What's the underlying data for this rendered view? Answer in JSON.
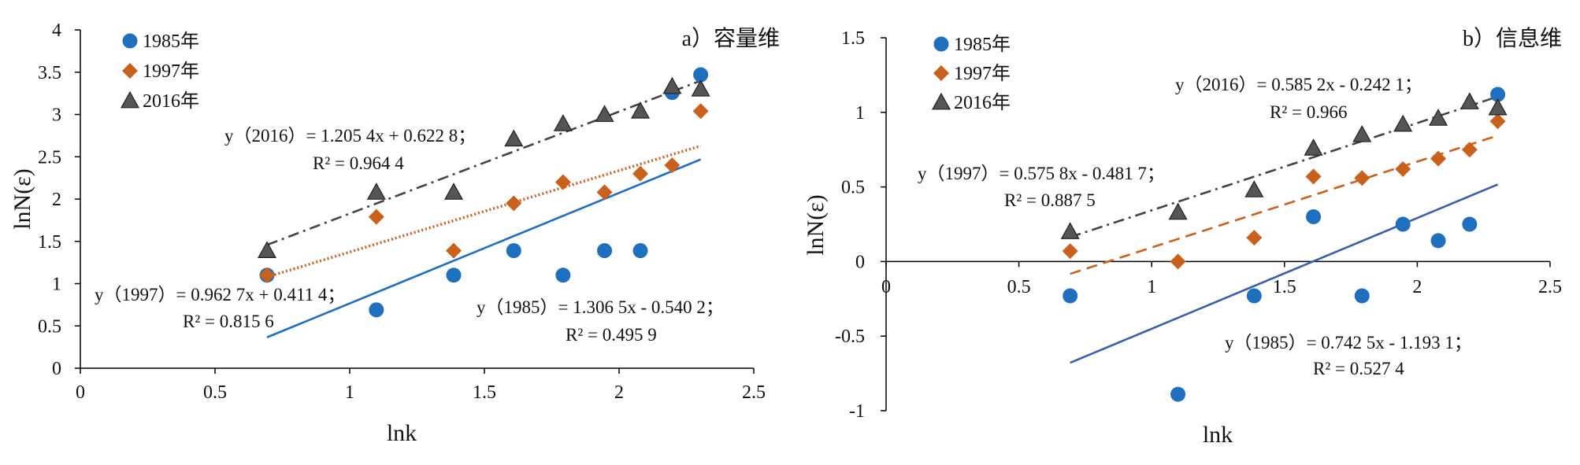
{
  "chart_data": [
    {
      "type": "scatter",
      "panel_title": "a）容量维",
      "xlabel": "lnk",
      "ylabel": "lnN(ε)",
      "xlim": [
        0,
        2.5
      ],
      "ylim": [
        0,
        4
      ],
      "x_ticks": [
        0,
        0.5,
        1,
        1.5,
        2,
        2.5
      ],
      "x_tick_labels": [
        "0",
        "0.5",
        "1",
        "1.5",
        "2",
        "2.5"
      ],
      "y_ticks": [
        0,
        0.5,
        1,
        1.5,
        2,
        2.5,
        3,
        3.5,
        4
      ],
      "y_tick_labels": [
        "0",
        "0.5",
        "1",
        "1.5",
        "2",
        "2.5",
        "3",
        "3.5",
        "4"
      ],
      "grid": false,
      "legend_position": "top-left",
      "series": [
        {
          "name": "1985年",
          "marker": "circle",
          "color": "#1f6fbf",
          "x": [
            0.693,
            1.099,
            1.386,
            1.609,
            1.792,
            1.946,
            2.079,
            2.197,
            2.303
          ],
          "y": [
            1.1,
            0.69,
            1.1,
            1.39,
            1.1,
            1.39,
            1.39,
            3.26,
            3.47
          ],
          "trendline": {
            "slope": 1.3065,
            "intercept": -0.5402,
            "x_range": [
              0.693,
              2.303
            ],
            "style": "solid",
            "color": "#1f6fbf"
          },
          "equation": "y（1985）= 1.306 5x - 0.540 2；",
          "r2": "R² = 0.495 9"
        },
        {
          "name": "1997年",
          "marker": "diamond",
          "color": "#c9601c",
          "x": [
            0.693,
            1.099,
            1.386,
            1.609,
            1.792,
            1.946,
            2.079,
            2.197,
            2.303
          ],
          "y": [
            1.1,
            1.79,
            1.39,
            1.95,
            2.2,
            2.08,
            2.3,
            2.4,
            3.04
          ],
          "trendline": {
            "slope": 0.9627,
            "intercept": 0.4114,
            "x_range": [
              0.693,
              2.303
            ],
            "style": "dotted",
            "color": "#c9601c"
          },
          "equation": "y（1997）= 0.962 7x + 0.411 4；",
          "r2": "R² = 0.815 6"
        },
        {
          "name": "2016年",
          "marker": "triangle",
          "color": "#555555",
          "x": [
            0.693,
            1.099,
            1.386,
            1.609,
            1.792,
            1.946,
            2.079,
            2.197,
            2.303
          ],
          "y": [
            1.39,
            2.08,
            2.08,
            2.71,
            2.89,
            3.0,
            3.04,
            3.33,
            3.3
          ],
          "trendline": {
            "slope": 1.2054,
            "intercept": 0.6228,
            "x_range": [
              0.693,
              2.303
            ],
            "style": "dashdot",
            "color": "#444444"
          },
          "equation": "y（2016）= 1.205 4x + 0.622 8；",
          "r2": "R² = 0.964 4"
        }
      ]
    },
    {
      "type": "scatter",
      "panel_title": "b）信息维",
      "xlabel": "lnk",
      "ylabel": "lnN(ε)",
      "xlim": [
        0,
        2.5
      ],
      "ylim": [
        -1,
        1.5
      ],
      "x_ticks": [
        0,
        0.5,
        1,
        1.5,
        2,
        2.5
      ],
      "x_tick_labels": [
        "0",
        "0.5",
        "1",
        "1.5",
        "2",
        "2.5"
      ],
      "y_ticks": [
        -1,
        -0.5,
        0,
        0.5,
        1,
        1.5
      ],
      "y_tick_labels": [
        "-1",
        "-0.5",
        "0",
        "0.5",
        "1",
        "1.5"
      ],
      "grid": false,
      "legend_position": "top-left",
      "series": [
        {
          "name": "1985年",
          "marker": "circle",
          "color": "#1f6fbf",
          "x": [
            0.693,
            1.099,
            1.386,
            1.609,
            1.792,
            1.946,
            2.079,
            2.197,
            2.303
          ],
          "y": [
            -0.23,
            -0.89,
            -0.23,
            0.3,
            -0.23,
            0.25,
            0.14,
            0.25,
            1.12
          ],
          "trendline": {
            "slope": 0.7425,
            "intercept": -1.1931,
            "x_range": [
              0.693,
              2.303
            ],
            "style": "solid",
            "color": "#3a5fa8"
          },
          "equation": "y（1985）= 0.742 5x - 1.193 1；",
          "r2": "R² = 0.527 4"
        },
        {
          "name": "1997年",
          "marker": "diamond",
          "color": "#c9601c",
          "x": [
            0.693,
            1.099,
            1.386,
            1.609,
            1.792,
            1.946,
            2.079,
            2.197,
            2.303
          ],
          "y": [
            0.07,
            0.0,
            0.16,
            0.57,
            0.56,
            0.62,
            0.69,
            0.75,
            0.94
          ],
          "trendline": {
            "slope": 0.5758,
            "intercept": -0.4817,
            "x_range": [
              0.693,
              2.303
            ],
            "style": "dashed",
            "color": "#c9601c"
          },
          "equation": "y（1997）= 0.575 8x - 0.481 7；",
          "r2": "R² = 0.887 5"
        },
        {
          "name": "2016年",
          "marker": "triangle",
          "color": "#555555",
          "x": [
            0.693,
            1.099,
            1.386,
            1.609,
            1.792,
            1.946,
            2.079,
            2.197,
            2.303
          ],
          "y": [
            0.2,
            0.33,
            0.48,
            0.76,
            0.85,
            0.92,
            0.96,
            1.07,
            1.03
          ],
          "trendline": {
            "slope": 0.5852,
            "intercept": -0.2421,
            "x_range": [
              0.693,
              2.303
            ],
            "style": "dashdot",
            "color": "#444444"
          },
          "equation": "y（2016）= 0.585 2x - 0.242 1；",
          "r2": "R² = 0.966"
        }
      ]
    }
  ]
}
